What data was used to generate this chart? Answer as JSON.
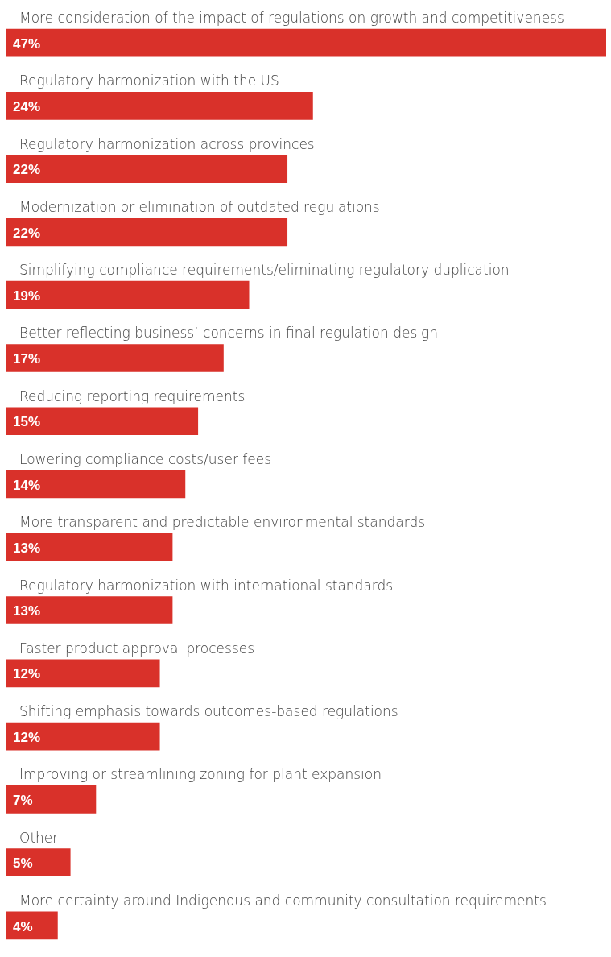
{
  "chart_data": {
    "type": "bar",
    "orientation": "horizontal",
    "color": "#d9312a",
    "legend": false,
    "categories": [
      "More consideration of the impact of regulations on growth and competitiveness",
      "Regulatory harmonization with the US",
      "Regulatory harmonization across provinces",
      "Modernization or elimination of outdated regulations",
      "Simplifying compliance requirements/eliminating regulatory duplication",
      "Better reflecting business’ concerns in final regulation design",
      "Reducing reporting requirements",
      "Lowering compliance costs/user fees",
      "More transparent and predictable environmental standards",
      "Regulatory harmonization with international standards",
      "Faster product approval processes",
      "Shifting emphasis towards outcomes-based regulations",
      "Improving or streamlining zoning for plant expansion",
      "Other",
      "More certainty around Indigenous and community consultation requirements"
    ],
    "values": [
      47,
      24,
      22,
      22,
      19,
      17,
      15,
      14,
      13,
      13,
      12,
      12,
      7,
      5,
      4
    ],
    "value_labels": [
      "47%",
      "24%",
      "22%",
      "22%",
      "19%",
      "17%",
      "15%",
      "14%",
      "13%",
      "13%",
      "12%",
      "12%",
      "7%",
      "5%",
      "4%"
    ]
  }
}
